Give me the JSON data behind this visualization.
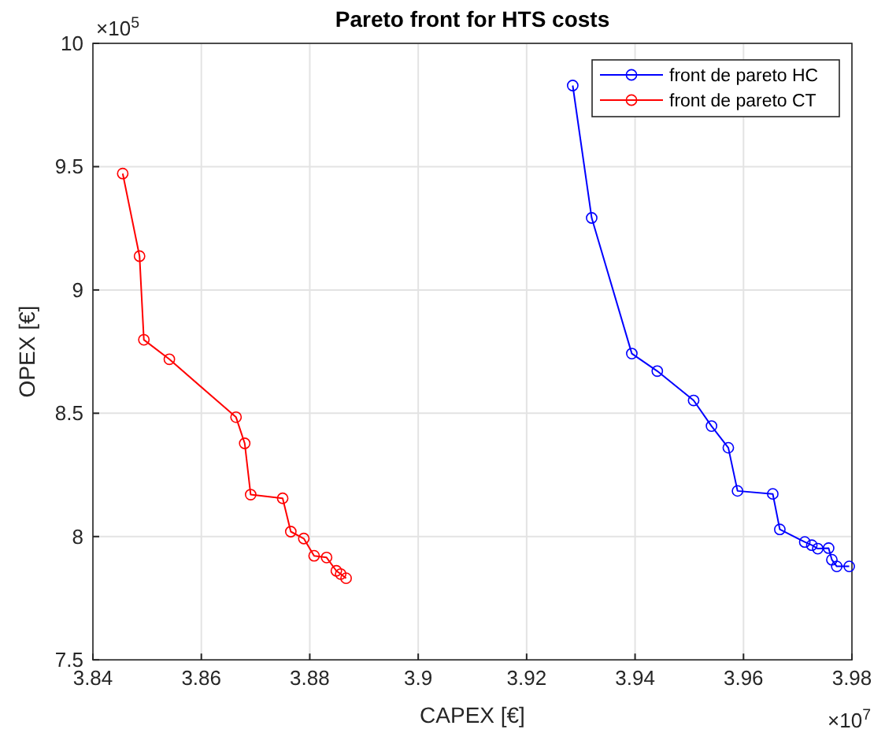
{
  "chart_data": {
    "type": "line",
    "title": "Pareto front for HTS costs",
    "xlabel": "CAPEX [€]",
    "ylabel": "OPEX [€]",
    "annotations": [
      "×10$^{7}$",
      "×10$^{5}$"
    ],
    "xlim": [
      3.84,
      3.98
    ],
    "xticks": [
      3.84,
      3.86,
      3.88,
      3.9,
      3.92,
      3.94,
      3.96,
      3.98
    ],
    "ylim": [
      7.5,
      10
    ],
    "yticks": [
      7.5,
      8,
      8.5,
      9,
      9.5,
      10
    ],
    "grid": true,
    "legend": "top right",
    "marker": "circle",
    "line_style": "solid",
    "series": [
      {
        "name": "front de pareto HC",
        "color": "#0000ff",
        "x": [
          3.9285,
          3.932,
          3.9394,
          3.9441,
          3.9508,
          3.9541,
          3.9572,
          3.9589,
          3.9654,
          3.9667,
          3.9713,
          3.9726,
          3.9737,
          3.9757,
          3.9763,
          3.9772,
          3.9795
        ],
        "values": [
          9.829,
          9.292,
          8.742,
          8.671,
          8.552,
          8.448,
          8.36,
          8.185,
          8.173,
          8.029,
          7.978,
          7.965,
          7.951,
          7.953,
          7.906,
          7.879,
          7.879
        ]
      },
      {
        "name": "front de pareto CT",
        "color": "#ff0000",
        "x": [
          3.8455,
          3.8486,
          3.8494,
          3.8541,
          3.8664,
          3.868,
          3.8691,
          3.875,
          3.8765,
          3.8789,
          3.8808,
          3.8831,
          3.8849,
          3.8857,
          3.8867
        ],
        "values": [
          9.472,
          9.137,
          8.798,
          8.719,
          8.484,
          8.378,
          8.17,
          8.155,
          8.02,
          7.992,
          7.922,
          7.915,
          7.861,
          7.848,
          7.831
        ]
      }
    ]
  }
}
